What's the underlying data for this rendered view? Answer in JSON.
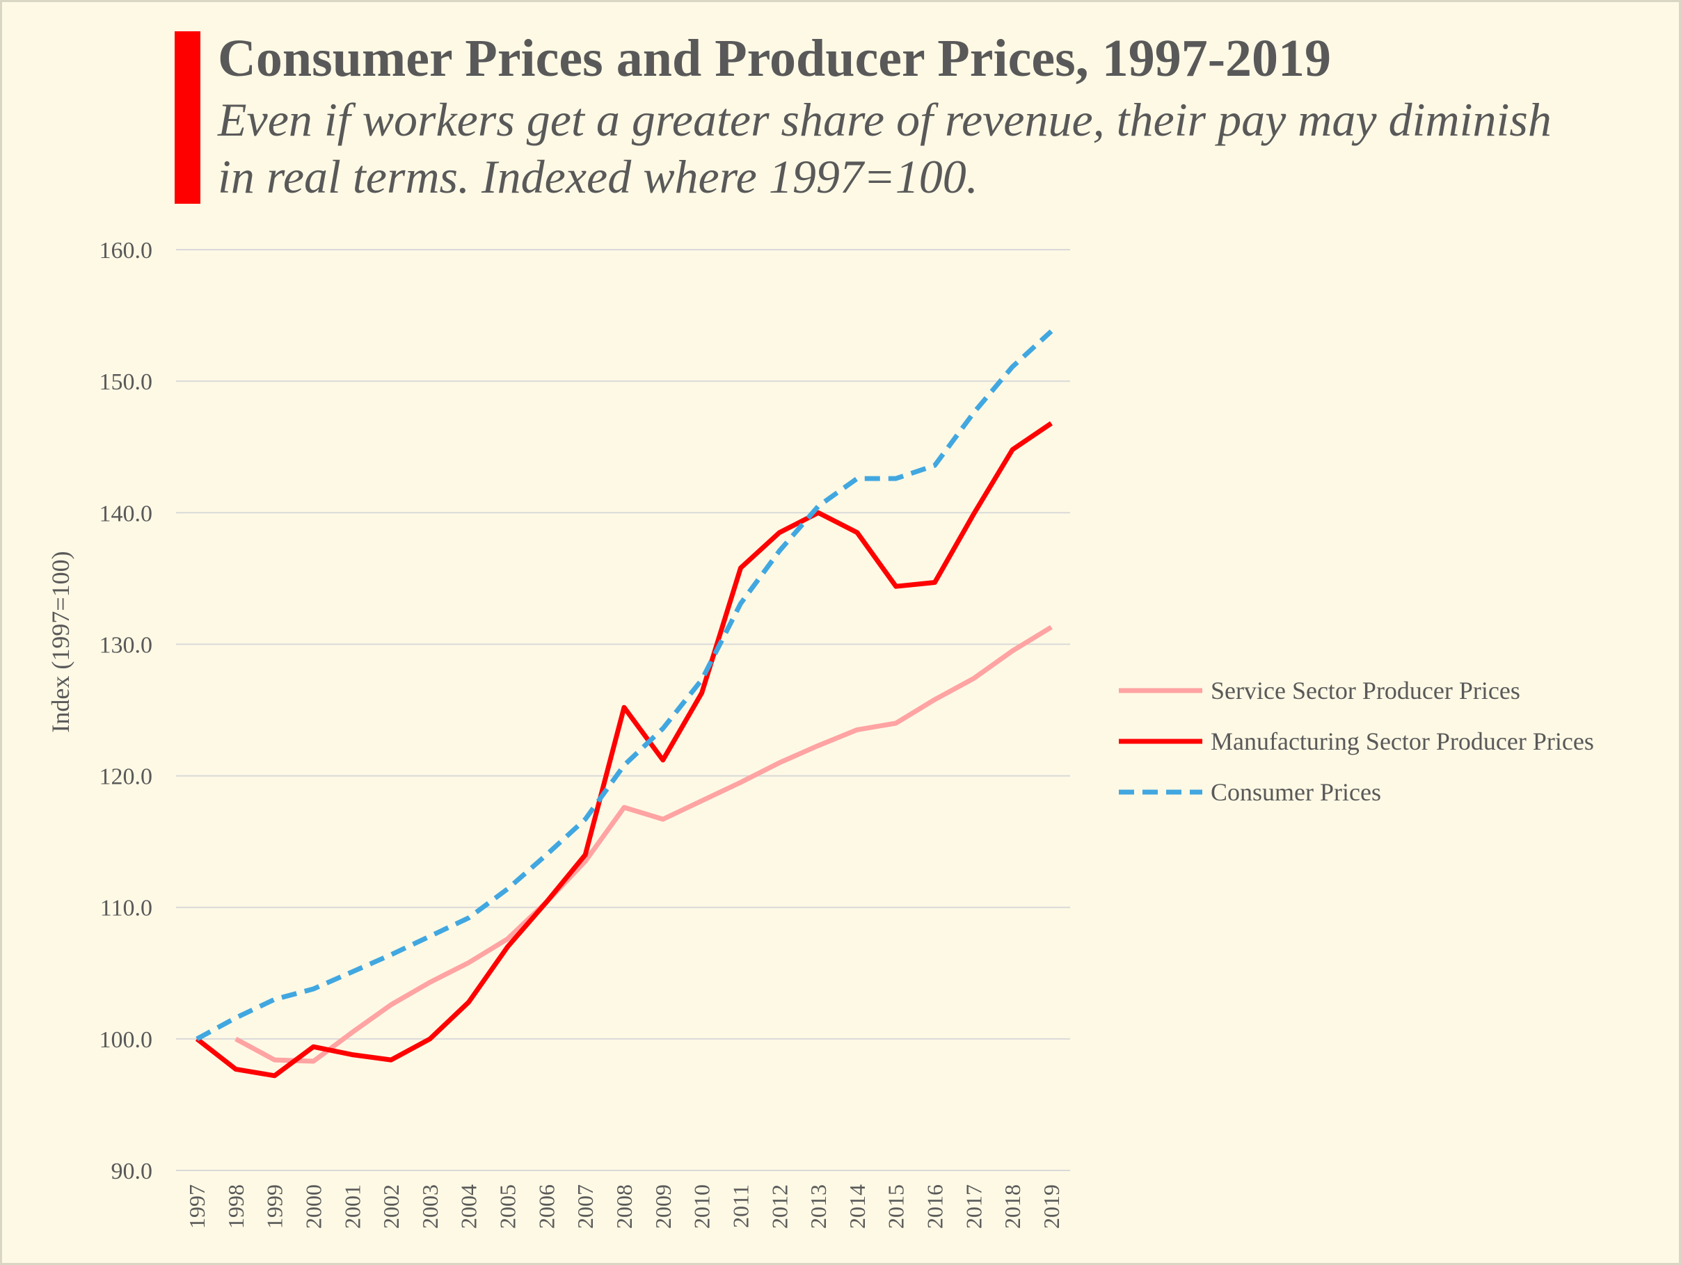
{
  "title": "Consumer Prices and Producer Prices, 1997-2019",
  "subtitle": "Even if workers get a greater share of revenue, their pay may diminish in real terms. Indexed where 1997=100.",
  "colors": {
    "background": "#fef9e5",
    "accent": "#ff0000",
    "grid": "#d9d9d9",
    "text": "#595959"
  },
  "chart_data": {
    "type": "line",
    "ylabel": "Index (1997=100)",
    "xlabel": "",
    "ylim": [
      90,
      160
    ],
    "y_ticks": [
      "90.0",
      "100.0",
      "110.0",
      "120.0",
      "130.0",
      "140.0",
      "150.0",
      "160.0"
    ],
    "grid": true,
    "legend_position": "right",
    "x": [
      "1997",
      "1998",
      "1999",
      "2000",
      "2001",
      "2002",
      "2003",
      "2004",
      "2005",
      "2006",
      "2007",
      "2008",
      "2009",
      "2010",
      "2011",
      "2012",
      "2013",
      "2014",
      "2015",
      "2016",
      "2017",
      "2018",
      "2019"
    ],
    "series": [
      {
        "name": "Service Sector Producer Prices",
        "color": "#ffa3a3",
        "dash": "solid",
        "values": [
          null,
          100.0,
          98.4,
          98.3,
          100.5,
          102.6,
          104.3,
          105.8,
          107.6,
          110.4,
          113.5,
          117.6,
          116.7,
          118.1,
          119.5,
          121.0,
          122.3,
          123.5,
          124.0,
          125.8,
          127.4,
          129.5,
          131.3
        ]
      },
      {
        "name": "Manufacturing Sector Producer Prices",
        "color": "#ff0000",
        "dash": "solid",
        "values": [
          100.0,
          97.7,
          97.2,
          99.4,
          98.8,
          98.4,
          100.0,
          102.8,
          107.0,
          110.4,
          114.0,
          125.2,
          121.2,
          126.3,
          135.8,
          138.5,
          140.0,
          138.5,
          134.4,
          134.7,
          139.9,
          144.8,
          146.8
        ]
      },
      {
        "name": "Consumer Prices",
        "color": "#41a7e0",
        "dash": "dashed",
        "values": [
          100.0,
          101.6,
          103.0,
          103.8,
          105.1,
          106.4,
          107.8,
          109.2,
          111.4,
          114.0,
          116.7,
          120.8,
          123.6,
          127.3,
          133.1,
          137.1,
          140.5,
          142.6,
          142.6,
          143.6,
          147.6,
          151.1,
          153.8
        ]
      }
    ]
  }
}
